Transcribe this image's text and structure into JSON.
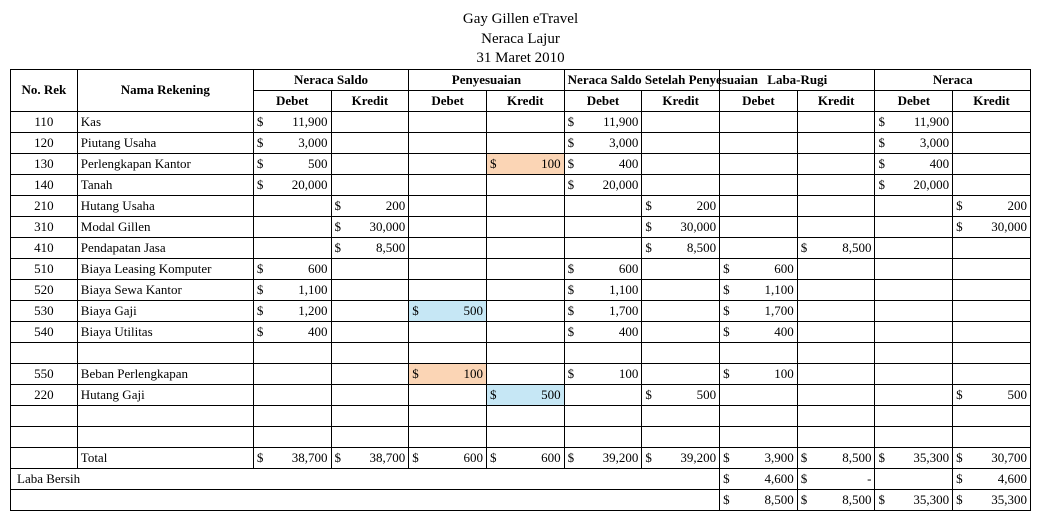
{
  "header": {
    "company": "Gay Gillen eTravel",
    "report": "Neraca Lajur",
    "date": "31 Maret 2010"
  },
  "columns": {
    "no_rek": "No. Rek",
    "nama": "Nama Rekening",
    "pairs": [
      "Neraca Saldo",
      "Penyesuaian",
      "Neraca Saldo Setelah Penyesuaian",
      "Laba-Rugi",
      "Neraca"
    ],
    "debet": "Debet",
    "kredit": "Kredit"
  },
  "currency_symbol": "$",
  "highlights": {
    "orange": "#fbd5b5",
    "blue": "#c6e7f5"
  },
  "rows": [
    {
      "no": "110",
      "nama": "Kas",
      "cells": [
        "11,900",
        "",
        "",
        "",
        "11,900",
        "",
        "",
        "",
        "11,900",
        ""
      ]
    },
    {
      "no": "120",
      "nama": "Piutang Usaha",
      "cells": [
        "3,000",
        "",
        "",
        "",
        "3,000",
        "",
        "",
        "",
        "3,000",
        ""
      ]
    },
    {
      "no": "130",
      "nama": "Perlengkapan Kantor",
      "cells": [
        "500",
        "",
        "",
        "100",
        "400",
        "",
        "",
        "",
        "400",
        ""
      ],
      "hl": {
        "3": "orange"
      }
    },
    {
      "no": "140",
      "nama": "Tanah",
      "cells": [
        "20,000",
        "",
        "",
        "",
        "20,000",
        "",
        "",
        "",
        "20,000",
        ""
      ]
    },
    {
      "no": "210",
      "nama": "Hutang Usaha",
      "cells": [
        "",
        "200",
        "",
        "",
        "",
        "200",
        "",
        "",
        "",
        "200"
      ]
    },
    {
      "no": "310",
      "nama": "Modal Gillen",
      "cells": [
        "",
        "30,000",
        "",
        "",
        "",
        "30,000",
        "",
        "",
        "",
        "30,000"
      ]
    },
    {
      "no": "410",
      "nama": "Pendapatan Jasa",
      "cells": [
        "",
        "8,500",
        "",
        "",
        "",
        "8,500",
        "",
        "8,500",
        "",
        ""
      ]
    },
    {
      "no": "510",
      "nama": "Biaya Leasing Komputer",
      "cells": [
        "600",
        "",
        "",
        "",
        "600",
        "",
        "600",
        "",
        "",
        ""
      ]
    },
    {
      "no": "520",
      "nama": "Biaya Sewa Kantor",
      "cells": [
        "1,100",
        "",
        "",
        "",
        "1,100",
        "",
        "1,100",
        "",
        "",
        ""
      ]
    },
    {
      "no": "530",
      "nama": "Biaya Gaji",
      "cells": [
        "1,200",
        "",
        "500",
        "",
        "1,700",
        "",
        "1,700",
        "",
        "",
        ""
      ],
      "hl": {
        "2": "blue"
      }
    },
    {
      "no": "540",
      "nama": "Biaya Utilitas",
      "cells": [
        "400",
        "",
        "",
        "",
        "400",
        "",
        "400",
        "",
        "",
        ""
      ]
    },
    {
      "blank": true
    },
    {
      "no": "550",
      "nama": "Beban Perlengkapan",
      "cells": [
        "",
        "",
        "100",
        "",
        "100",
        "",
        "100",
        "",
        "",
        ""
      ],
      "hl": {
        "2": "orange"
      }
    },
    {
      "no": "220",
      "nama": "Hutang Gaji",
      "cells": [
        "",
        "",
        "",
        "500",
        "",
        "500",
        "",
        "",
        "",
        "500"
      ],
      "hl": {
        "3": "blue"
      }
    },
    {
      "blank": true
    },
    {
      "blank": true
    }
  ],
  "totals": {
    "label": "Total",
    "cells": [
      "38,700",
      "38,700",
      "600",
      "600",
      "39,200",
      "39,200",
      "3,900",
      "8,500",
      "35,300",
      "30,700"
    ]
  },
  "laba_bersih": {
    "label": "Laba Bersih",
    "lr_debet": "4,600",
    "lr_kredit": "-",
    "neraca_kredit": "4,600"
  },
  "final": {
    "lr_debet": "8,500",
    "lr_kredit": "8,500",
    "neraca_debet": "35,300",
    "neraca_kredit": "35,300"
  }
}
